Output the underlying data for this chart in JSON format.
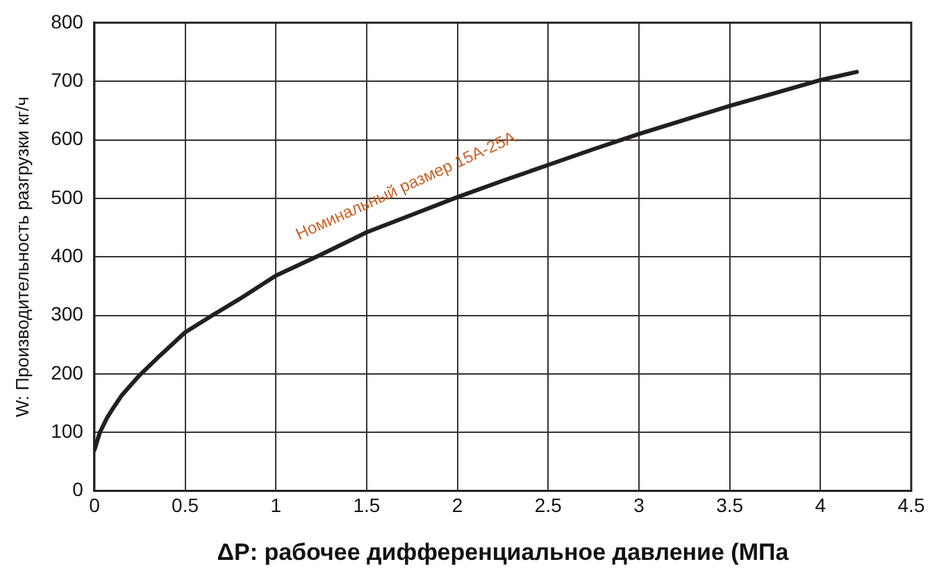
{
  "chart_data": {
    "type": "line",
    "xlabel": "ΔP: рабочее дифференциальное давление (МПа",
    "ylabel": "W: Производительность разгрузки кг/ч",
    "xlim": [
      0,
      4.5
    ],
    "xticks": [
      0,
      0.5,
      1,
      1.5,
      2,
      2.5,
      3,
      3.5,
      4,
      4.5
    ],
    "ylim": [
      0,
      800
    ],
    "yticks": [
      0,
      100,
      200,
      300,
      400,
      500,
      600,
      700,
      800
    ],
    "grid": true,
    "legend": false,
    "marker": "none",
    "line_style": "solid",
    "series": [
      {
        "name": "Номинальный размер 15A-25A",
        "color": "#231f20",
        "x": [
          0,
          0.03,
          0.07,
          0.1,
          0.15,
          0.25,
          0.35,
          0.5,
          0.65,
          0.8,
          1,
          1.25,
          1.5,
          1.75,
          2,
          2.25,
          2.5,
          2.75,
          3,
          3.25,
          3.5,
          3.75,
          4,
          4.2
        ],
        "values": [
          70,
          100,
          125,
          140,
          163,
          198,
          228,
          271,
          300,
          328,
          368,
          404,
          442,
          472,
          502,
          530,
          557,
          584,
          610,
          634,
          658,
          680,
          702,
          716
        ]
      }
    ]
  }
}
